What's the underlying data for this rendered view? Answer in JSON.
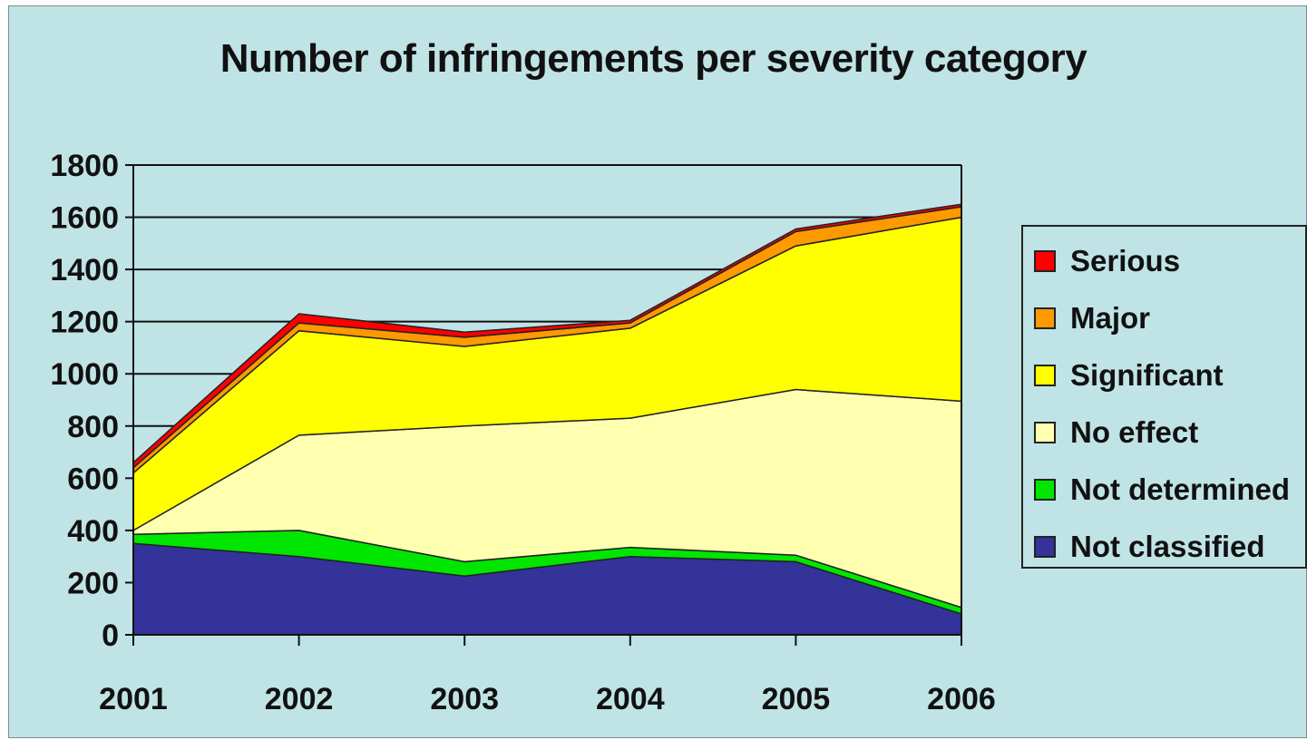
{
  "chart_data": {
    "type": "area",
    "stacked": true,
    "title": "Number of infringements per severity category",
    "xlabel": "",
    "ylabel": "",
    "categories": [
      "2001",
      "2002",
      "2003",
      "2004",
      "2005",
      "2006"
    ],
    "ylim": [
      0,
      1800
    ],
    "yticks": [
      0,
      200,
      400,
      600,
      800,
      1000,
      1200,
      1400,
      1600,
      1800
    ],
    "grid": true,
    "legend_position": "right",
    "series": [
      {
        "name": "Not classified",
        "color": "#333399",
        "values": [
          350,
          300,
          225,
          300,
          280,
          80
        ]
      },
      {
        "name": "Not determined",
        "color": "#00e600",
        "values": [
          35,
          100,
          55,
          35,
          25,
          25
        ]
      },
      {
        "name": "No effect",
        "color": "#ffffb0",
        "values": [
          15,
          365,
          520,
          495,
          635,
          790
        ]
      },
      {
        "name": "Significant",
        "color": "#ffff00",
        "values": [
          220,
          400,
          305,
          345,
          550,
          705
        ]
      },
      {
        "name": "Major",
        "color": "#ff9900",
        "values": [
          20,
          30,
          35,
          20,
          55,
          40
        ]
      },
      {
        "name": "Serious",
        "color": "#ff0000",
        "values": [
          20,
          35,
          20,
          10,
          10,
          10
        ]
      }
    ]
  }
}
